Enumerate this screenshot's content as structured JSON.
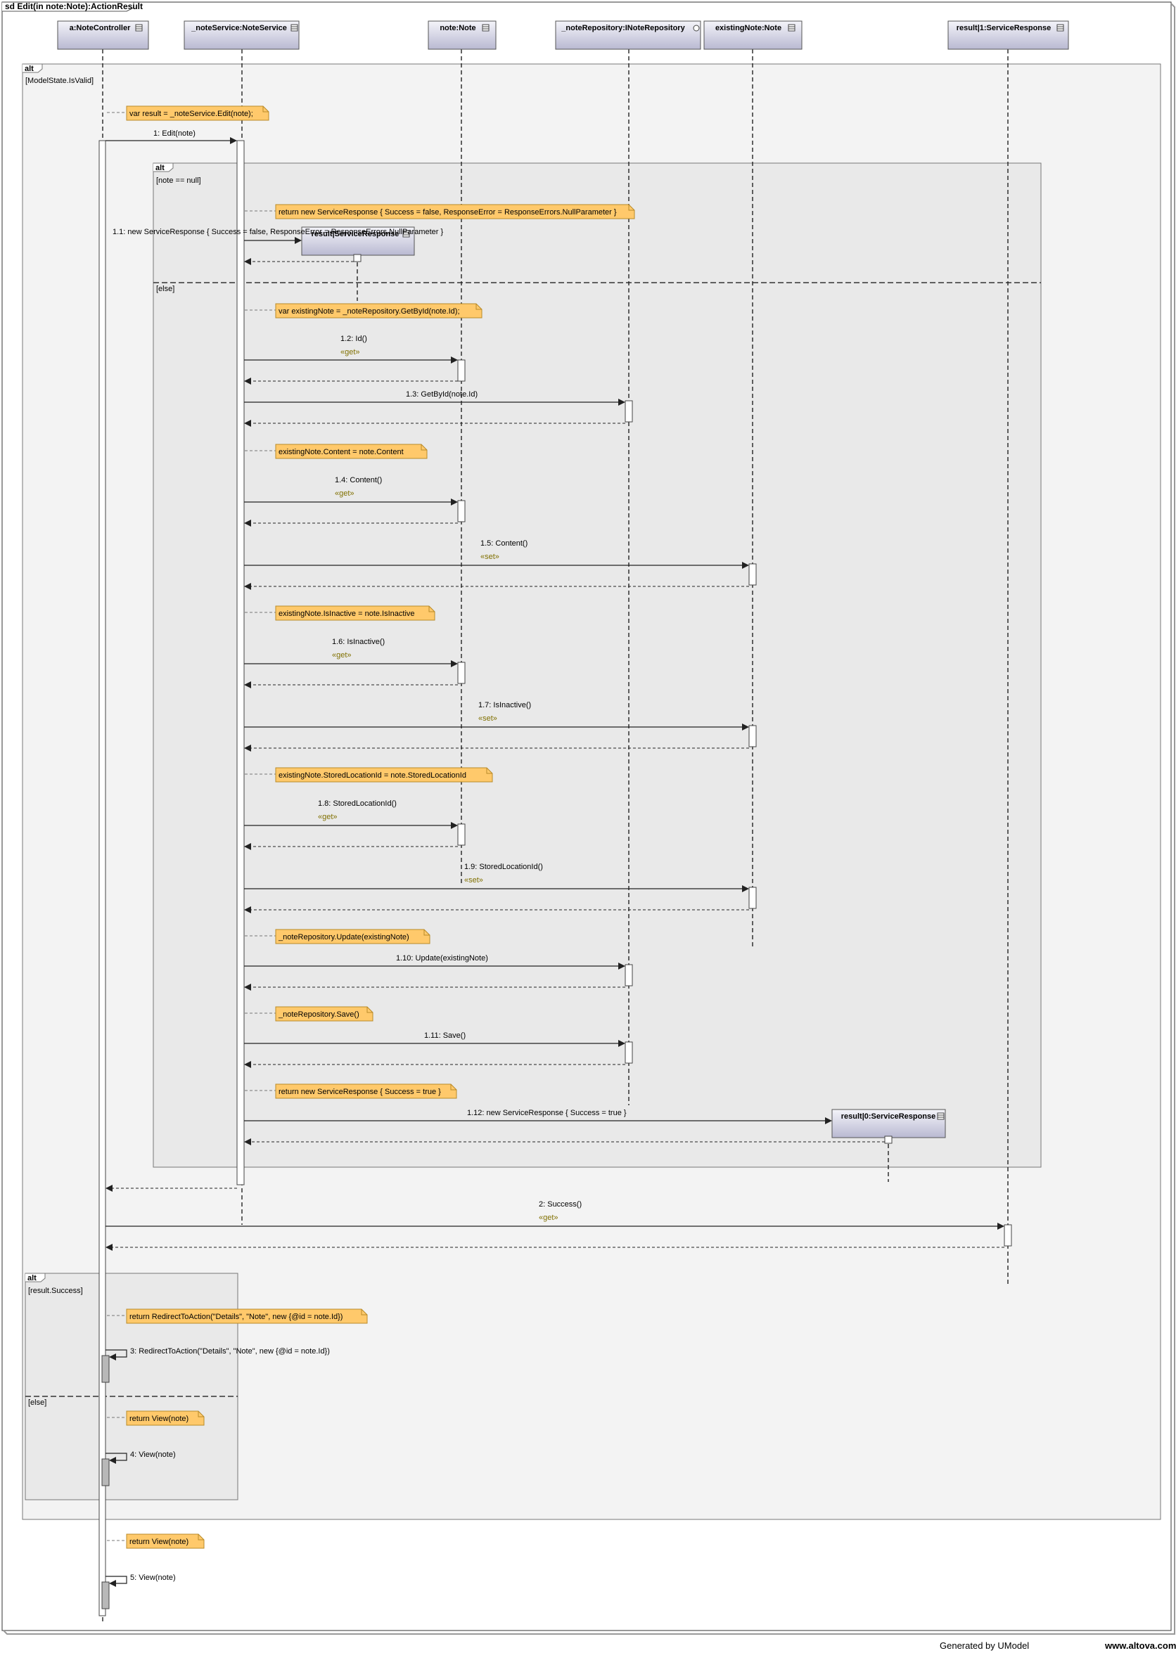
{
  "frame_title": "sd Edit(in note:Note):ActionResult",
  "lifelines": [
    {
      "id": "ctrl",
      "label": "a:NoteController"
    },
    {
      "id": "svc",
      "label": "_noteService:NoteService"
    },
    {
      "id": "note",
      "label": "note:Note"
    },
    {
      "id": "repo",
      "label": "_noteRepository:INoteRepository"
    },
    {
      "id": "ex",
      "label": "existingNote:Note"
    },
    {
      "id": "r1",
      "label": "result|1:ServiceResponse"
    }
  ],
  "created_objects": [
    {
      "id": "rnull",
      "label": "result|ServiceResponse"
    },
    {
      "id": "r0",
      "label": "result|0:ServiceResponse"
    }
  ],
  "fragments": [
    {
      "id": "alt_outer",
      "label": "alt",
      "guards": [
        "[ModelState.IsValid]"
      ]
    },
    {
      "id": "alt_inner",
      "label": "alt",
      "guards": [
        "[note == null]",
        "[else]"
      ]
    },
    {
      "id": "alt_result",
      "label": "alt",
      "guards": [
        "[result.Success]",
        "[else]"
      ]
    }
  ],
  "notes": [
    {
      "id": "n1",
      "text": "var result = _noteService.Edit(note);"
    },
    {
      "id": "n2",
      "text": "return new ServiceResponse { Success = false, ResponseError = ResponseErrors.NullParameter }"
    },
    {
      "id": "n3",
      "text": "var existingNote = _noteRepository.GetById(note.Id);"
    },
    {
      "id": "n4",
      "text": "existingNote.Content = note.Content"
    },
    {
      "id": "n5",
      "text": "existingNote.IsInactive = note.IsInactive"
    },
    {
      "id": "n6",
      "text": "existingNote.StoredLocationId = note.StoredLocationId"
    },
    {
      "id": "n7",
      "text": "_noteRepository.Update(existingNote)"
    },
    {
      "id": "n8",
      "text": "_noteRepository.Save()"
    },
    {
      "id": "n9",
      "text": "return new ServiceResponse { Success = true }"
    },
    {
      "id": "n10",
      "text": "return RedirectToAction(\"Details\", \"Note\", new {@id = note.Id})"
    },
    {
      "id": "n11",
      "text": "return View(note)"
    },
    {
      "id": "n12",
      "text": "return View(note)"
    }
  ],
  "messages": [
    {
      "id": "m1",
      "label": "1: Edit(note)",
      "stereotype": ""
    },
    {
      "id": "m1_1",
      "label": "1.1: new ServiceResponse { Success = false, ResponseError = ResponseErrors.NullParameter }",
      "stereotype": ""
    },
    {
      "id": "m1_2",
      "label": "1.2: Id()",
      "stereotype": "«get»"
    },
    {
      "id": "m1_3",
      "label": "1.3: GetById(note.Id)",
      "stereotype": ""
    },
    {
      "id": "m1_4",
      "label": "1.4: Content()",
      "stereotype": "«get»"
    },
    {
      "id": "m1_5",
      "label": "1.5: Content()",
      "stereotype": "«set»"
    },
    {
      "id": "m1_6",
      "label": "1.6: IsInactive()",
      "stereotype": "«get»"
    },
    {
      "id": "m1_7",
      "label": "1.7: IsInactive()",
      "stereotype": "«set»"
    },
    {
      "id": "m1_8",
      "label": "1.8: StoredLocationId()",
      "stereotype": "«get»"
    },
    {
      "id": "m1_9",
      "label": "1.9: StoredLocationId()",
      "stereotype": "«set»"
    },
    {
      "id": "m1_10",
      "label": "1.10: Update(existingNote)",
      "stereotype": ""
    },
    {
      "id": "m1_11",
      "label": "1.11: Save()",
      "stereotype": ""
    },
    {
      "id": "m1_12",
      "label": "1.12: new ServiceResponse { Success = true }",
      "stereotype": ""
    },
    {
      "id": "m2",
      "label": "2: Success()",
      "stereotype": "«get»"
    },
    {
      "id": "m3",
      "label": "3: RedirectToAction(\"Details\", \"Note\", new {@id = note.Id})",
      "stereotype": ""
    },
    {
      "id": "m4",
      "label": "4: View(note)",
      "stereotype": ""
    },
    {
      "id": "m5",
      "label": "5: View(note)",
      "stereotype": ""
    }
  ],
  "footer": {
    "generated": "Generated by UModel",
    "site": "www.altova.com"
  },
  "colors": {
    "note_fill": "#ffc96b",
    "note_border": "#b88a28",
    "stereotype": "#807000",
    "header_top": "#f4f4fa",
    "header_bottom": "#b9b9d2",
    "fragment_outer": "#f3f3f3",
    "fragment_inner": "#e9e9e9"
  }
}
